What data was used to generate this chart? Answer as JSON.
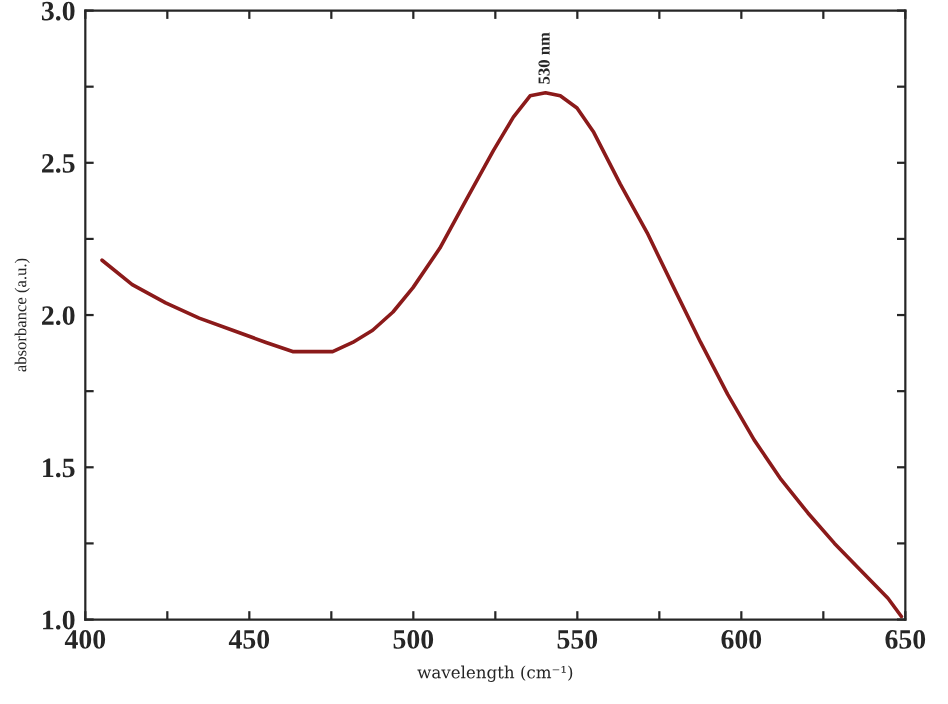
{
  "chart_data": {
    "type": "line",
    "xlabel": "wavelength (cm⁻¹)",
    "ylabel": "absorbance (a.u.)",
    "x": [
      405.1,
      414.3,
      424.5,
      434.7,
      444.9,
      455.1,
      463.2,
      470.3,
      475.4,
      481.5,
      487.6,
      493.8,
      499.9,
      508.1,
      516.2,
      524.4,
      530.5,
      535.6,
      540.3,
      544.8,
      549.9,
      555.0,
      563.1,
      571.3,
      579.4,
      587.6,
      595.8,
      603.9,
      612.1,
      620.3,
      628.4,
      636.5,
      644.7,
      648.8
    ],
    "series": [
      {
        "color": "#8b1a1a",
        "values": [
          2.18,
          2.1,
          2.04,
          1.99,
          1.95,
          1.91,
          1.88,
          1.88,
          1.88,
          1.91,
          1.95,
          2.01,
          2.09,
          2.22,
          2.38,
          2.54,
          2.65,
          2.72,
          2.73,
          2.72,
          2.68,
          2.6,
          2.43,
          2.27,
          2.09,
          1.91,
          1.74,
          1.59,
          1.46,
          1.35,
          1.25,
          1.16,
          1.07,
          1.01
        ]
      }
    ],
    "xlim": [
      400,
      650
    ],
    "ylim": [
      1.0,
      3.0
    ],
    "xticks": [
      400,
      {
        "value": 425,
        "label": null
      },
      450,
      {
        "value": 475,
        "label": null
      },
      500,
      {
        "value": 525,
        "label": null
      },
      550,
      {
        "value": 575,
        "label": null
      },
      600,
      {
        "value": 625,
        "label": null
      },
      650
    ],
    "yticks": [
      {
        "value": 1.0,
        "label": "1.0"
      },
      {
        "value": 1.25,
        "label": null
      },
      1.5,
      {
        "value": 1.75,
        "label": null
      },
      {
        "value": 2.0,
        "label": "2.0"
      },
      {
        "value": 2.25,
        "label": null
      },
      2.5,
      {
        "value": 2.75,
        "label": null
      },
      {
        "value": 3.0,
        "label": "3.0"
      }
    ],
    "annotations": [
      {
        "text": "530 nm",
        "x": 540.3,
        "y": 2.73
      }
    ],
    "grid": false,
    "legend": false,
    "marker": "none",
    "line_style": "solid"
  }
}
